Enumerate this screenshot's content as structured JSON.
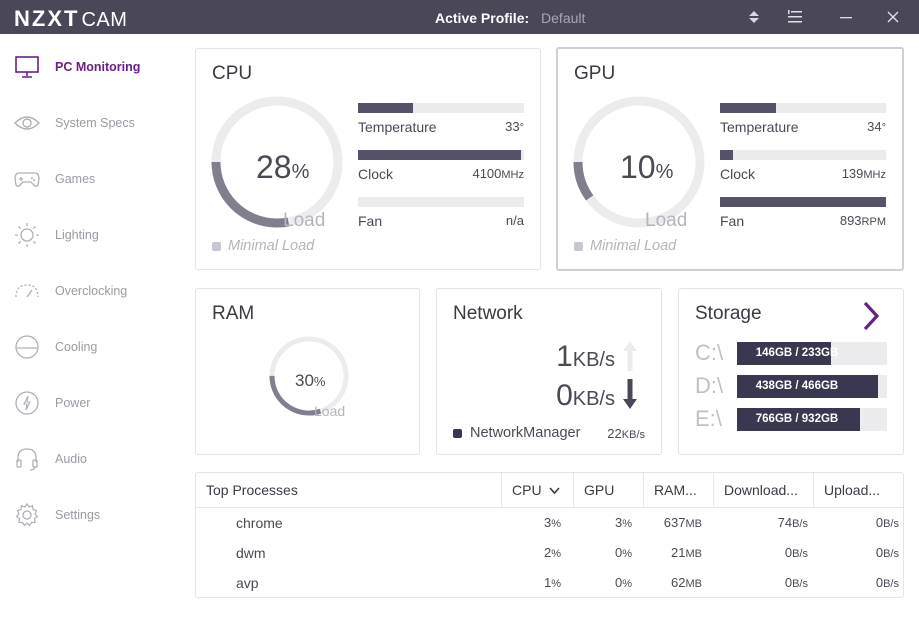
{
  "app": {
    "brand": "NZXT",
    "brand_suffix": "CAM"
  },
  "header": {
    "profile_label": "Active Profile:",
    "profile_value": "Default"
  },
  "sidebar": {
    "items": [
      {
        "label": "PC Monitoring",
        "icon": "monitor-icon",
        "active": true
      },
      {
        "label": "System Specs",
        "icon": "eye-icon"
      },
      {
        "label": "Games",
        "icon": "gamepad-icon"
      },
      {
        "label": "Lighting",
        "icon": "sun-icon"
      },
      {
        "label": "Overclocking",
        "icon": "speedometer-icon"
      },
      {
        "label": "Cooling",
        "icon": "fan-icon"
      },
      {
        "label": "Power",
        "icon": "power-icon"
      },
      {
        "label": "Audio",
        "icon": "headphones-icon"
      },
      {
        "label": "Settings",
        "icon": "gear-icon"
      }
    ]
  },
  "cpu": {
    "title": "CPU",
    "load": "28",
    "load_fraction": 0.28,
    "percent": "%",
    "load_label": "Load",
    "status": "Minimal Load",
    "temp_label": "Temperature",
    "temp_value": "33",
    "temp_unit": "°",
    "temp_fraction": 0.33,
    "clock_label": "Clock",
    "clock_value": "4100",
    "clock_unit": "MHz",
    "clock_fraction": 0.98,
    "fan_label": "Fan",
    "fan_value": "n/a",
    "fan_fraction": 0
  },
  "gpu": {
    "title": "GPU",
    "load": "10",
    "load_fraction": 0.1,
    "percent": "%",
    "load_label": "Load",
    "status": "Minimal Load",
    "temp_label": "Temperature",
    "temp_value": "34",
    "temp_unit": "°",
    "temp_fraction": 0.34,
    "clock_label": "Clock",
    "clock_value": "139",
    "clock_unit": "MHz",
    "clock_fraction": 0.08,
    "fan_label": "Fan",
    "fan_value": "893",
    "fan_unit": "RPM",
    "fan_fraction": 1.0
  },
  "ram": {
    "title": "RAM",
    "load": "30",
    "load_fraction": 0.3,
    "percent": "%",
    "load_label": "Load"
  },
  "network": {
    "title": "Network",
    "up_value": "1",
    "up_unit": "KB/s",
    "down_value": "0",
    "down_unit": "KB/s",
    "process": "NetworkManager",
    "process_value": "22",
    "process_unit": "KB/s"
  },
  "storage": {
    "title": "Storage",
    "drives": [
      {
        "letter": "C:\\",
        "text": "146GB / 233GB",
        "fraction": 0.627
      },
      {
        "letter": "D:\\",
        "text": "438GB / 466GB",
        "fraction": 0.94
      },
      {
        "letter": "E:\\",
        "text": "766GB / 932GB",
        "fraction": 0.822
      }
    ]
  },
  "processes": {
    "headers": {
      "name": "Top Processes",
      "cpu": "CPU",
      "gpu": "GPU",
      "ram": "RAM...",
      "download": "Download...",
      "upload": "Upload..."
    },
    "rows": [
      {
        "name": "chrome",
        "cpu": "3",
        "gpu": "3",
        "ram": "637",
        "download": "74",
        "upload": "0"
      },
      {
        "name": "dwm",
        "cpu": "2",
        "gpu": "0",
        "ram": "21",
        "download": "0",
        "upload": "0"
      },
      {
        "name": "avp",
        "cpu": "1",
        "gpu": "0",
        "ram": "62",
        "download": "0",
        "upload": "0"
      }
    ],
    "units": {
      "pct": "%",
      "mb": "MB",
      "bs": "B/s"
    }
  },
  "colors": {
    "titlebar": "#4a4759",
    "accent": "#6b1f88",
    "bar_fill": "#55536a",
    "bar_track": "#ececef",
    "gauge_fill": "#807f8e"
  }
}
